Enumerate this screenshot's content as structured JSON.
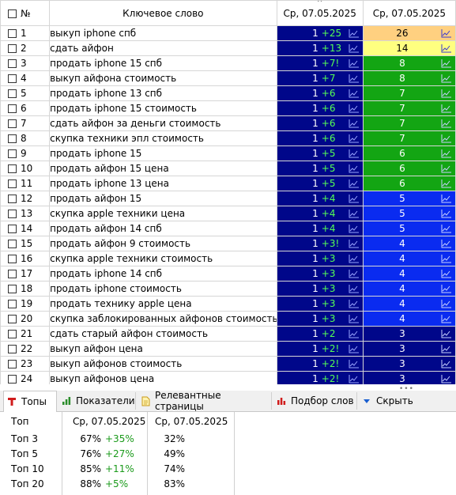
{
  "header": {
    "num": "№",
    "keyword": "Ключевое слово",
    "date1": "Ср, 07.05.2025",
    "date2": "Ср, 07.05.2025"
  },
  "colors": {
    "position_bg": "#00078a",
    "delta_text": "#55ff55",
    "top3_bg": "#ffd080",
    "top5_bg": "#ffff80",
    "top10_bg": "#13a513",
    "top20_bg": "#0a2bf0",
    "top30_bg": "#00078a"
  },
  "rows": [
    {
      "num": "1",
      "keyword": "выкуп iphone спб",
      "pos1": "1",
      "delta": "+25",
      "pos2": "26",
      "color": "#ffd080",
      "text": "#000000"
    },
    {
      "num": "2",
      "keyword": "сдать айфон",
      "pos1": "1",
      "delta": "+13",
      "pos2": "14",
      "color": "#ffff80",
      "text": "#000000"
    },
    {
      "num": "3",
      "keyword": "продать iphone 15 спб",
      "pos1": "1",
      "delta": "+7!",
      "pos2": "8",
      "color": "#13a513",
      "text": "#ffffff"
    },
    {
      "num": "4",
      "keyword": "выкуп айфона стоимость",
      "pos1": "1",
      "delta": "+7",
      "pos2": "8",
      "color": "#13a513",
      "text": "#ffffff"
    },
    {
      "num": "5",
      "keyword": "продать iphone 13 спб",
      "pos1": "1",
      "delta": "+6",
      "pos2": "7",
      "color": "#13a513",
      "text": "#ffffff"
    },
    {
      "num": "6",
      "keyword": "продать iphone 15 стоимость",
      "pos1": "1",
      "delta": "+6",
      "pos2": "7",
      "color": "#13a513",
      "text": "#ffffff"
    },
    {
      "num": "7",
      "keyword": "сдать айфон за деньги стоимость",
      "pos1": "1",
      "delta": "+6",
      "pos2": "7",
      "color": "#13a513",
      "text": "#ffffff"
    },
    {
      "num": "8",
      "keyword": "скупка техники эпл стоимость",
      "pos1": "1",
      "delta": "+6",
      "pos2": "7",
      "color": "#13a513",
      "text": "#ffffff"
    },
    {
      "num": "9",
      "keyword": "продать iphone 15",
      "pos1": "1",
      "delta": "+5",
      "pos2": "6",
      "color": "#13a513",
      "text": "#ffffff"
    },
    {
      "num": "10",
      "keyword": "продать айфон 15 цена",
      "pos1": "1",
      "delta": "+5",
      "pos2": "6",
      "color": "#13a513",
      "text": "#ffffff"
    },
    {
      "num": "11",
      "keyword": "продать iphone 13 цена",
      "pos1": "1",
      "delta": "+5",
      "pos2": "6",
      "color": "#13a513",
      "text": "#ffffff"
    },
    {
      "num": "12",
      "keyword": "продать айфон 15",
      "pos1": "1",
      "delta": "+4",
      "pos2": "5",
      "color": "#0a2bf0",
      "text": "#ffffff"
    },
    {
      "num": "13",
      "keyword": "скупка apple техники цена",
      "pos1": "1",
      "delta": "+4",
      "pos2": "5",
      "color": "#0a2bf0",
      "text": "#ffffff"
    },
    {
      "num": "14",
      "keyword": "продать айфон 14 спб",
      "pos1": "1",
      "delta": "+4",
      "pos2": "5",
      "color": "#0a2bf0",
      "text": "#ffffff"
    },
    {
      "num": "15",
      "keyword": "продать айфон 9 стоимость",
      "pos1": "1",
      "delta": "+3!",
      "pos2": "4",
      "color": "#0a2bf0",
      "text": "#ffffff"
    },
    {
      "num": "16",
      "keyword": "скупка apple техники стоимость",
      "pos1": "1",
      "delta": "+3",
      "pos2": "4",
      "color": "#0a2bf0",
      "text": "#ffffff"
    },
    {
      "num": "17",
      "keyword": "продать iphone 14 спб",
      "pos1": "1",
      "delta": "+3",
      "pos2": "4",
      "color": "#0a2bf0",
      "text": "#ffffff"
    },
    {
      "num": "18",
      "keyword": "продать iphone стоимость",
      "pos1": "1",
      "delta": "+3",
      "pos2": "4",
      "color": "#0a2bf0",
      "text": "#ffffff"
    },
    {
      "num": "19",
      "keyword": "продать технику apple цена",
      "pos1": "1",
      "delta": "+3",
      "pos2": "4",
      "color": "#0a2bf0",
      "text": "#ffffff"
    },
    {
      "num": "20",
      "keyword": "скупка заблокированных айфонов стоимость",
      "pos1": "1",
      "delta": "+3",
      "pos2": "4",
      "color": "#0a2bf0",
      "text": "#ffffff"
    },
    {
      "num": "21",
      "keyword": "сдать старый айфон стоимость",
      "pos1": "1",
      "delta": "+2",
      "pos2": "3",
      "color": "#00078a",
      "text": "#ffffff"
    },
    {
      "num": "22",
      "keyword": "выкуп айфон цена",
      "pos1": "1",
      "delta": "+2!",
      "pos2": "3",
      "color": "#00078a",
      "text": "#ffffff"
    },
    {
      "num": "23",
      "keyword": "выкуп айфонов стоимость",
      "pos1": "1",
      "delta": "+2!",
      "pos2": "3",
      "color": "#00078a",
      "text": "#ffffff"
    },
    {
      "num": "24",
      "keyword": "выкуп айфонов цена",
      "pos1": "1",
      "delta": "+2!",
      "pos2": "3",
      "color": "#00078a",
      "text": "#ffffff"
    }
  ],
  "tabs": [
    {
      "label": "Топы",
      "icon": "tops-t-icon",
      "active": true
    },
    {
      "label": "Показатели",
      "icon": "bar-chart-icon",
      "active": false
    },
    {
      "label": "Релевантные страницы",
      "icon": "document-icon",
      "active": false
    },
    {
      "label": "Подбор слов",
      "icon": "red-bars-icon",
      "active": false
    },
    {
      "label": "Скрыть",
      "icon": "collapse-arrow-icon",
      "active": false
    }
  ],
  "stats": {
    "header": [
      "Топ",
      "Ср, 07.05.2025",
      "Ср, 07.05.2025"
    ],
    "rows": [
      {
        "label": "Топ 3",
        "v1": "67%",
        "d1": "+35%",
        "v2": "32%"
      },
      {
        "label": "Топ 5",
        "v1": "76%",
        "d1": "+27%",
        "v2": "49%"
      },
      {
        "label": "Топ 10",
        "v1": "85%",
        "d1": "+11%",
        "v2": "74%"
      },
      {
        "label": "Топ 20",
        "v1": "88%",
        "d1": "+5%",
        "v2": "83%"
      }
    ]
  }
}
